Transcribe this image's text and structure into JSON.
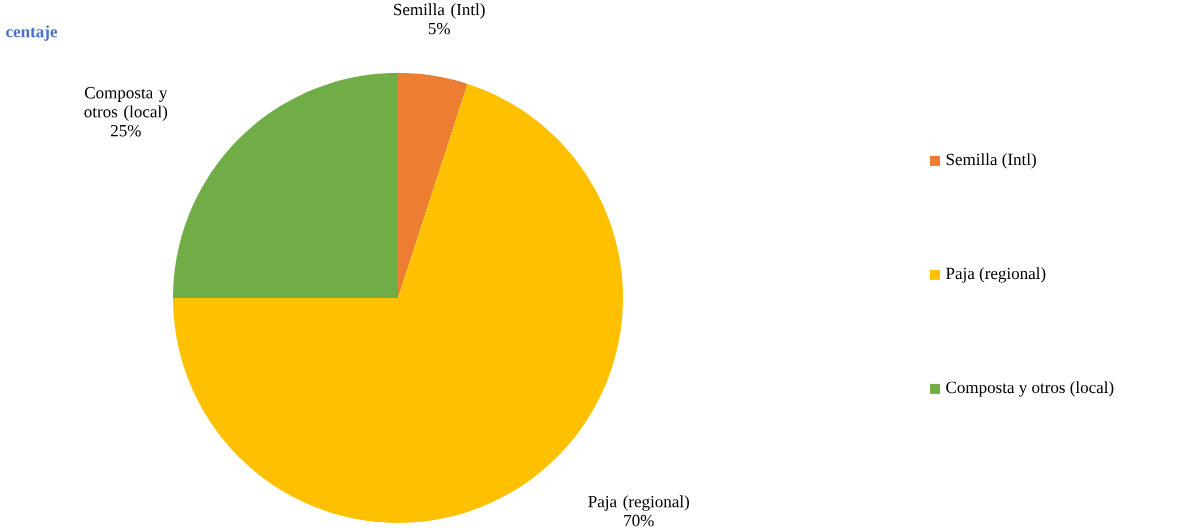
{
  "chart_data": {
    "type": "pie",
    "title": "centaje",
    "categories": [
      "Semilla  (Intl)",
      "Paja (regional)",
      "Composta y otros (local)"
    ],
    "values": [
      5,
      70,
      25
    ],
    "colors": [
      "#ed7d31",
      "#ffc000",
      "#70ad47"
    ],
    "value_labels": [
      "5%",
      "70%",
      "25%"
    ],
    "legend": "right"
  }
}
